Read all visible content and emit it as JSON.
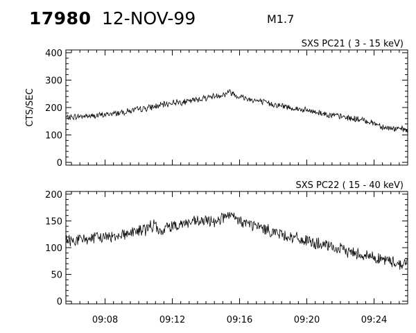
{
  "header": {
    "event_id": "17980",
    "date": "12-NOV-99",
    "flare_class": "M1.7"
  },
  "chart_data": [
    {
      "type": "line",
      "title": "SXS PC21  (  3 - 15 keV)",
      "xlabel": "",
      "ylabel": "CTS/SEC",
      "xlim": [
        "09:05:40",
        "09:26:00"
      ],
      "ylim": [
        -10,
        410
      ],
      "yticks": [
        0,
        100,
        200,
        300,
        400
      ],
      "xticks": [
        "09:08",
        "09:12",
        "09:16",
        "09:20",
        "09:24"
      ],
      "series": [
        {
          "time": [
            "09:05:40",
            "09:06:30",
            "09:07:30",
            "09:08:30",
            "09:09:30",
            "09:10:30",
            "09:11:30",
            "09:12:10",
            "09:12:50",
            "09:13:30",
            "09:14:30",
            "09:15:10",
            "09:15:20",
            "09:15:50",
            "09:16:30",
            "09:17:30",
            "09:18:30",
            "09:19:30",
            "09:20:30",
            "09:21:30",
            "09:22:30",
            "09:23:30",
            "09:24:10",
            "09:24:40",
            "09:25:20",
            "09:26:00"
          ],
          "values": [
            163,
            168,
            170,
            178,
            188,
            198,
            210,
            220,
            220,
            230,
            242,
            248,
            260,
            244,
            232,
            218,
            206,
            194,
            184,
            172,
            162,
            152,
            140,
            127,
            122,
            118
          ],
          "noise": 10
        }
      ]
    },
    {
      "type": "line",
      "title": "SXS PC22  ( 15 - 40 keV)",
      "xlabel": "",
      "ylabel": "",
      "xlim": [
        "09:05:40",
        "09:26:00"
      ],
      "ylim": [
        -5,
        205
      ],
      "yticks": [
        0,
        50,
        100,
        150,
        200
      ],
      "xticks": [
        "09:08",
        "09:12",
        "09:16",
        "09:20",
        "09:24"
      ],
      "series": [
        {
          "time": [
            "09:05:40",
            "09:06:30",
            "09:07:30",
            "09:08:30",
            "09:09:30",
            "09:10:30",
            "09:11:00",
            "09:11:10",
            "09:11:40",
            "09:12:30",
            "09:13:30",
            "09:14:30",
            "09:15:20",
            "09:15:50",
            "09:16:30",
            "09:17:30",
            "09:18:30",
            "09:19:30",
            "09:20:30",
            "09:21:30",
            "09:22:30",
            "09:23:30",
            "09:24:30",
            "09:25:20",
            "09:25:40",
            "09:26:00"
          ],
          "values": [
            112,
            115,
            118,
            122,
            128,
            135,
            145,
            125,
            138,
            145,
            148,
            150,
            160,
            152,
            145,
            135,
            125,
            116,
            108,
            100,
            93,
            86,
            78,
            72,
            68,
            75
          ],
          "noise": 10
        }
      ]
    }
  ]
}
